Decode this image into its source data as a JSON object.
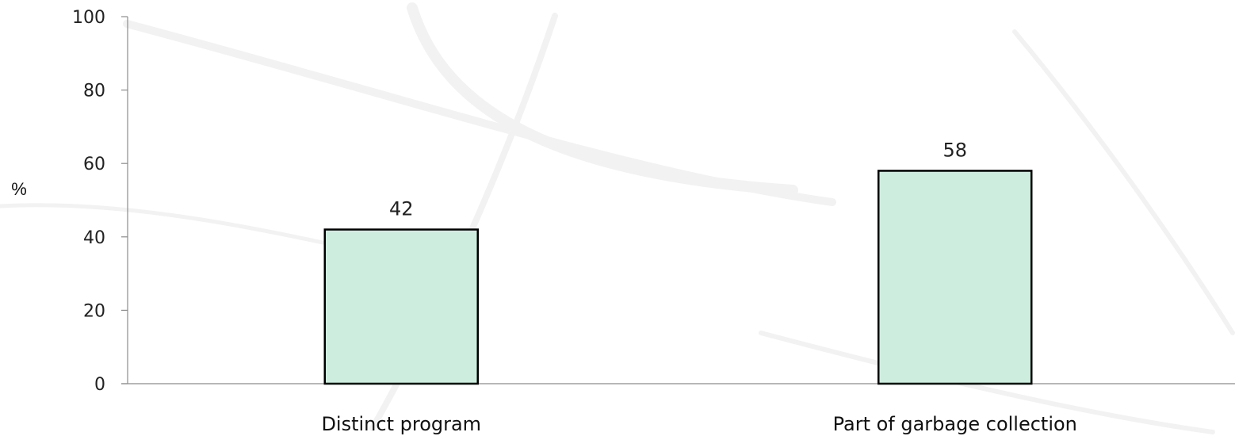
{
  "chart_data": {
    "type": "bar",
    "categories": [
      "Distinct program",
      "Part of garbage collection"
    ],
    "values": [
      42,
      58
    ],
    "data_labels": [
      "42",
      "58"
    ],
    "title": "",
    "xlabel": "",
    "ylabel": "%",
    "ylim": [
      0,
      100
    ],
    "yticks": [
      0,
      20,
      40,
      60,
      80,
      100
    ],
    "ytick_labels": [
      "0",
      "20",
      "40",
      "60",
      "80",
      "100"
    ],
    "grid": false,
    "legend": "none",
    "bar_color": "#cdeddf",
    "bar_edge_color": "#000000",
    "axis_color": "#8c8c8c"
  }
}
